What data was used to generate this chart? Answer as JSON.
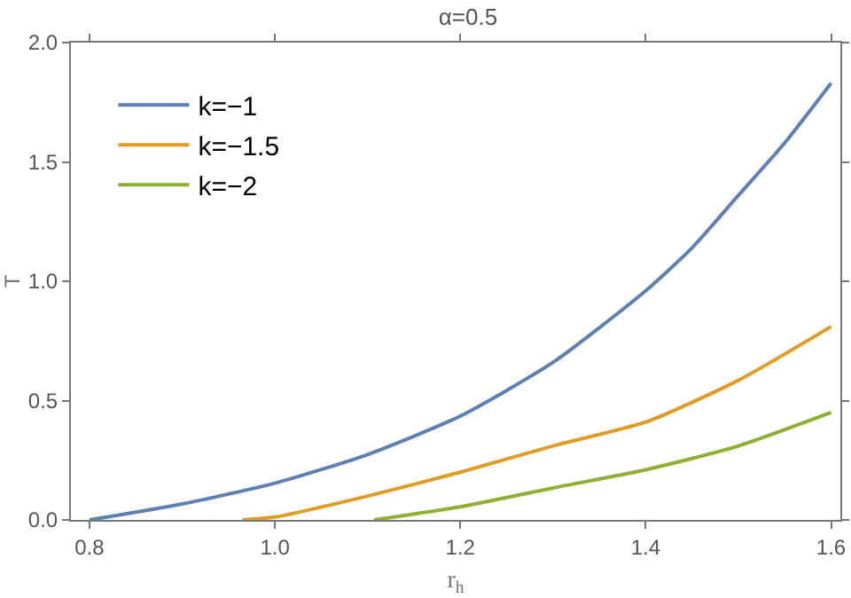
{
  "chart_data": {
    "type": "line",
    "title": "α=0.5",
    "xlabel": "r$_{h}$",
    "ylabel": "T",
    "xlim": [
      0.78,
      1.61
    ],
    "ylim": [
      0,
      2
    ],
    "xticks": [
      {
        "value": 0.8,
        "label": "0.8"
      },
      {
        "value": 1.0,
        "label": "1.0"
      },
      {
        "value": 1.2,
        "label": "1.2"
      },
      {
        "value": 1.4,
        "label": "1.4"
      },
      {
        "value": 1.6,
        "label": "1.6"
      }
    ],
    "yticks": [
      {
        "value": 0,
        "label": "0.0"
      },
      {
        "value": 0.5,
        "label": "0.5"
      },
      {
        "value": 1.0,
        "label": "1.0"
      },
      {
        "value": 1.5,
        "label": "1.5"
      },
      {
        "value": 2.0,
        "label": "2.0"
      }
    ],
    "grid": false,
    "legend": "top left",
    "marker": "none",
    "line_style": "solid",
    "series": [
      {
        "name": "k=−1",
        "color": "#5e81b5",
        "x": [
          0.8,
          0.9,
          1.0,
          1.1,
          1.2,
          1.3,
          1.4,
          1.45,
          1.5,
          1.55,
          1.6
        ],
        "values": [
          0,
          0.067,
          0.154,
          0.274,
          0.435,
          0.66,
          0.96,
          1.14,
          1.36,
          1.58,
          1.83
        ]
      },
      {
        "name": "k=−1.5",
        "color": "#e19c24",
        "x": [
          0.965,
          1.0,
          1.1,
          1.2,
          1.3,
          1.4,
          1.5,
          1.6
        ],
        "values": [
          0,
          0.012,
          0.1,
          0.2,
          0.31,
          0.41,
          0.585,
          0.81
        ]
      },
      {
        "name": "k=−2",
        "color": "#8fb032",
        "x": [
          1.107,
          1.2,
          1.3,
          1.4,
          1.5,
          1.6
        ],
        "values": [
          0,
          0.055,
          0.134,
          0.21,
          0.31,
          0.45
        ]
      }
    ]
  }
}
